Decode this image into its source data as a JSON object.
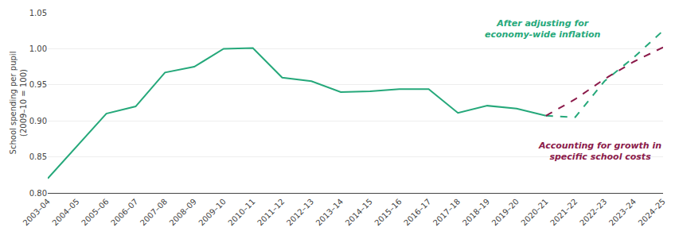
{
  "chart_data": {
    "type": "line",
    "ylabel": "School spending per pupil\n(2009–10 = 100)",
    "categories": [
      "2003–04",
      "2004–05",
      "2005–06",
      "2006–07",
      "2007–08",
      "2008–09",
      "2009–10",
      "2010–11",
      "2011–12",
      "2012–13",
      "2013–14",
      "2014–15",
      "2015–16",
      "2016–17",
      "2017–18",
      "2018–19",
      "2019–20",
      "2020–21",
      "2021–22",
      "2022–23",
      "2023–24",
      "2024–25"
    ],
    "series": [
      {
        "color": "#25a87a",
        "line_style": "solid",
        "values": [
          0.82,
          0.865,
          0.91,
          0.92,
          0.967,
          0.975,
          1.0,
          1.001,
          0.96,
          0.955,
          0.94,
          0.941,
          0.944,
          0.944,
          0.911,
          0.921,
          0.917,
          0.907,
          null,
          null,
          null,
          null
        ]
      },
      {
        "color": "#25a87a",
        "line_style": "dash",
        "values": [
          null,
          null,
          null,
          null,
          null,
          null,
          null,
          null,
          null,
          null,
          null,
          null,
          null,
          null,
          null,
          null,
          null,
          0.907,
          0.905,
          0.955,
          0.988,
          1.025
        ]
      },
      {
        "color": "#8b1a4a",
        "line_style": "dash",
        "values": [
          null,
          null,
          null,
          null,
          null,
          null,
          null,
          null,
          null,
          null,
          null,
          null,
          null,
          null,
          null,
          null,
          null,
          0.907,
          0.93,
          0.958,
          0.982,
          1.002
        ]
      }
    ],
    "ylim": [
      0.8,
      1.05
    ],
    "yticks": [
      {
        "value": 0.8,
        "label": "0.80"
      },
      0.85,
      {
        "value": 0.9,
        "label": "0.90"
      },
      0.95,
      {
        "value": 1.0,
        "label": "1.00"
      },
      1.05
    ],
    "grid": true,
    "annotations": [
      {
        "text": "After adjusting for\neconomy-wide inflation",
        "color": "#25a87a"
      },
      {
        "text": "Accounting for growth in\nspecific school costs",
        "color": "#8b1a4a"
      }
    ]
  }
}
